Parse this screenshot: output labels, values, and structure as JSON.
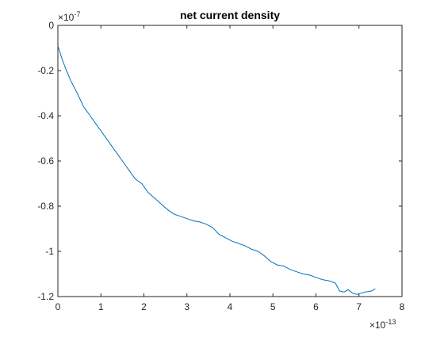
{
  "chart_data": {
    "type": "line",
    "title": "net current density",
    "xlabel": "",
    "ylabel": "",
    "x_multiplier_label": "×10",
    "x_multiplier_exp": "-13",
    "y_multiplier_label": "×10",
    "y_multiplier_exp": "-7",
    "xlim": [
      0,
      8
    ],
    "ylim": [
      -1.2,
      0
    ],
    "x_ticks": [
      0,
      1,
      2,
      3,
      4,
      5,
      6,
      7,
      8
    ],
    "x_tick_labels": [
      "0",
      "1",
      "2",
      "3",
      "4",
      "5",
      "6",
      "7",
      "8"
    ],
    "y_ticks": [
      0,
      -0.2,
      -0.4,
      -0.6,
      -0.8,
      -1,
      -1.2
    ],
    "y_tick_labels": [
      "0",
      "-0.2",
      "-0.4",
      "-0.6",
      "-0.8",
      "-1",
      "-1.2"
    ],
    "grid": false,
    "line_color": "#0072BD",
    "series": [
      {
        "x": [
          0,
          0.1,
          0.2,
          0.3,
          0.45,
          0.6,
          0.75,
          0.9,
          1.05,
          1.2,
          1.35,
          1.5,
          1.65,
          1.8,
          1.95,
          2.1,
          2.25,
          2.4,
          2.55,
          2.7,
          2.85,
          3.0,
          3.15,
          3.3,
          3.45,
          3.6,
          3.75,
          3.9,
          4.05,
          4.2,
          4.35,
          4.5,
          4.65,
          4.8,
          4.95,
          5.1,
          5.25,
          5.4,
          5.55,
          5.7,
          5.85,
          6.0,
          6.15,
          6.3,
          6.45,
          6.55,
          6.65,
          6.75,
          6.85,
          6.95,
          7.05,
          7.15,
          7.3,
          7.38
        ],
        "y": [
          -0.09,
          -0.15,
          -0.2,
          -0.245,
          -0.3,
          -0.36,
          -0.4,
          -0.44,
          -0.48,
          -0.52,
          -0.56,
          -0.6,
          -0.64,
          -0.68,
          -0.7,
          -0.74,
          -0.765,
          -0.79,
          -0.815,
          -0.835,
          -0.845,
          -0.855,
          -0.865,
          -0.87,
          -0.88,
          -0.895,
          -0.925,
          -0.94,
          -0.955,
          -0.965,
          -0.975,
          -0.99,
          -1.0,
          -1.02,
          -1.045,
          -1.06,
          -1.065,
          -1.08,
          -1.09,
          -1.1,
          -1.105,
          -1.115,
          -1.125,
          -1.13,
          -1.14,
          -1.175,
          -1.18,
          -1.17,
          -1.185,
          -1.19,
          -1.185,
          -1.18,
          -1.175,
          -1.165
        ]
      }
    ]
  }
}
